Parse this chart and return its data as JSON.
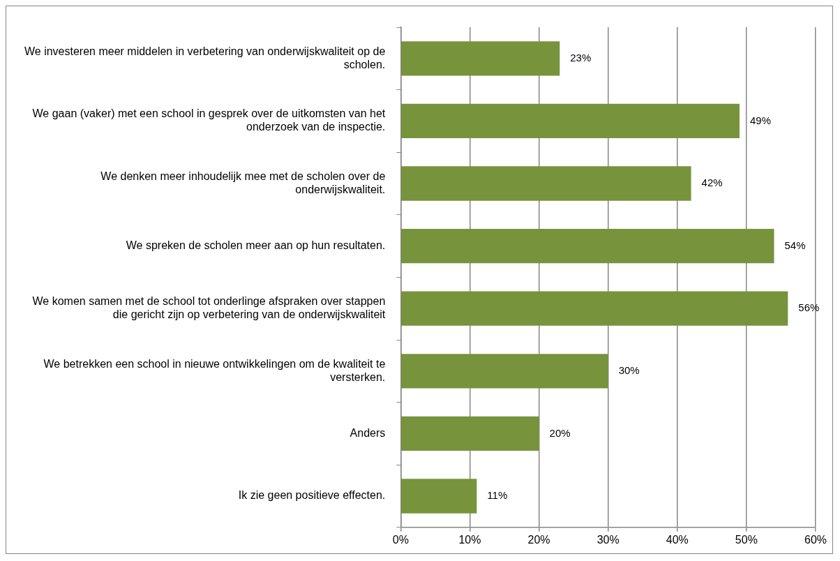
{
  "chart_data": {
    "type": "bar",
    "orientation": "horizontal",
    "categories": [
      "We investeren meer middelen in verbetering van onderwijskwaliteit op de scholen.",
      "We gaan (vaker) met een school in gesprek over de uitkomsten van het onderzoek van de inspectie.",
      "We denken meer inhoudelijk mee met de scholen over de onderwijskwaliteit.",
      "We spreken de scholen meer aan op hun resultaten.",
      "We komen samen met de school tot onderlinge afspraken over stappen die gericht zijn op verbetering van de onderwijskwaliteit",
      "We betrekken een school in nieuwe ontwikkelingen om de kwaliteit te versterken.",
      "Anders",
      "Ik zie geen positieve effecten."
    ],
    "values": [
      23,
      49,
      42,
      54,
      56,
      30,
      20,
      11
    ],
    "value_labels": [
      "23%",
      "49%",
      "42%",
      "54%",
      "56%",
      "30%",
      "20%",
      "11%"
    ],
    "color": "#77933c",
    "xlim": [
      0,
      60
    ],
    "xticks": [
      {
        "value": 0,
        "label": "0%"
      },
      {
        "value": 10,
        "label": "10%"
      },
      {
        "value": 20,
        "label": "20%"
      },
      {
        "value": 30,
        "label": "30%"
      },
      {
        "value": 40,
        "label": "40%"
      },
      {
        "value": 50,
        "label": "50%"
      },
      {
        "value": 60,
        "label": "60%"
      }
    ],
    "grid": "x",
    "legend": false
  }
}
